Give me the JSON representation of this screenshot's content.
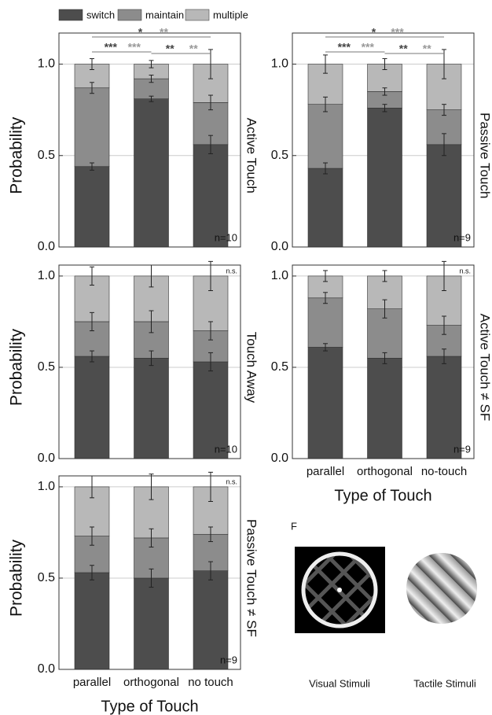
{
  "chart_data": [
    {
      "type": "bar",
      "stacked": true,
      "title": "Active Touch",
      "ylabel": "Probability",
      "ylim": [
        0,
        1.17
      ],
      "yticks": [
        {
          "value": 0,
          "label": "0.0"
        },
        {
          "value": 0.5,
          "label": "0.5"
        },
        {
          "value": 1,
          "label": "1.0"
        }
      ],
      "grid": true,
      "series": [
        {
          "name": "switch",
          "color": "#4d4d4d",
          "values": [
            0.44,
            0.81,
            0.56
          ],
          "errors": [
            0.02,
            0.015,
            0.05
          ]
        },
        {
          "name": "maintain",
          "color": "#8c8c8c",
          "values": [
            0.43,
            0.11,
            0.23
          ],
          "errors": [
            0.03,
            0.02,
            0.04
          ]
        },
        {
          "name": "multiple",
          "color": "#b8b8b8",
          "values": [
            0.13,
            0.08,
            0.21
          ],
          "errors": [
            0.03,
            0.02,
            0.08
          ]
        }
      ],
      "annotations": [
        "*",
        "**",
        "***",
        "***",
        "**",
        "**"
      ],
      "n_label": "n=10"
    },
    {
      "type": "bar",
      "stacked": true,
      "title": "Passive Touch",
      "ylim": [
        0,
        1.17
      ],
      "yticks": [
        {
          "value": 0,
          "label": "0.0"
        },
        {
          "value": 0.5,
          "label": "0.5"
        },
        {
          "value": 1,
          "label": "1.0"
        }
      ],
      "grid": true,
      "series": [
        {
          "color": "#4d4d4d",
          "values": [
            0.43,
            0.76,
            0.56
          ],
          "errors": [
            0.03,
            0.02,
            0.06
          ]
        },
        {
          "color": "#8c8c8c",
          "values": [
            0.35,
            0.09,
            0.19
          ],
          "errors": [
            0.04,
            0.02,
            0.03
          ]
        },
        {
          "color": "#b8b8b8",
          "values": [
            0.22,
            0.15,
            0.25
          ],
          "errors": [
            0.05,
            0.03,
            0.08
          ]
        }
      ],
      "annotations": [
        "*",
        "***",
        "***",
        "***",
        "**",
        "**"
      ],
      "n_label": "n=9"
    },
    {
      "type": "bar",
      "stacked": true,
      "title": "Touch Away",
      "ylabel": "Probability",
      "ylim": [
        0,
        1.06
      ],
      "yticks": [
        {
          "value": 0,
          "label": "0.0"
        },
        {
          "value": 0.5,
          "label": "0.5"
        },
        {
          "value": 1,
          "label": "1.0"
        }
      ],
      "grid": true,
      "series": [
        {
          "color": "#4d4d4d",
          "values": [
            0.56,
            0.55,
            0.53
          ],
          "errors": [
            0.03,
            0.04,
            0.05
          ]
        },
        {
          "color": "#8c8c8c",
          "values": [
            0.19,
            0.2,
            0.17
          ],
          "errors": [
            0.05,
            0.06,
            0.05
          ]
        },
        {
          "color": "#b8b8b8",
          "values": [
            0.25,
            0.25,
            0.3
          ],
          "errors": [
            0.05,
            0.06,
            0.08
          ]
        }
      ],
      "significance": "n.s.",
      "n_label": "n=10"
    },
    {
      "type": "bar",
      "stacked": true,
      "title": "Active Touch ≠ SF",
      "xlabel": "Type of Touch",
      "ylim": [
        0,
        1.06
      ],
      "categories": [
        "parallel",
        "orthogonal",
        "no-touch"
      ],
      "yticks": [
        {
          "value": 0,
          "label": "0.0"
        },
        {
          "value": 0.5,
          "label": "0.5"
        },
        {
          "value": 1,
          "label": "1.0"
        }
      ],
      "grid": true,
      "series": [
        {
          "color": "#4d4d4d",
          "values": [
            0.61,
            0.55,
            0.56
          ],
          "errors": [
            0.02,
            0.03,
            0.04
          ]
        },
        {
          "color": "#8c8c8c",
          "values": [
            0.27,
            0.27,
            0.17
          ],
          "errors": [
            0.03,
            0.05,
            0.05
          ]
        },
        {
          "color": "#b8b8b8",
          "values": [
            0.12,
            0.18,
            0.27
          ],
          "errors": [
            0.03,
            0.03,
            0.08
          ]
        }
      ],
      "significance": "n.s.",
      "n_label": "n=9"
    },
    {
      "type": "bar",
      "stacked": true,
      "title": "Passive Touch ≠ SF",
      "ylabel": "Probability",
      "xlabel": "Type of Touch",
      "ylim": [
        0,
        1.06
      ],
      "categories": [
        "parallel",
        "orthogonal",
        "no touch"
      ],
      "yticks": [
        {
          "value": 0,
          "label": "0.0"
        },
        {
          "value": 0.5,
          "label": "0.5"
        },
        {
          "value": 1,
          "label": "1.0"
        }
      ],
      "grid": true,
      "series": [
        {
          "color": "#4d4d4d",
          "values": [
            0.53,
            0.5,
            0.54
          ],
          "errors": [
            0.04,
            0.05,
            0.05
          ]
        },
        {
          "color": "#8c8c8c",
          "values": [
            0.2,
            0.22,
            0.2
          ],
          "errors": [
            0.05,
            0.05,
            0.04
          ]
        },
        {
          "color": "#b8b8b8",
          "values": [
            0.27,
            0.28,
            0.26
          ],
          "errors": [
            0.06,
            0.07,
            0.08
          ]
        }
      ],
      "significance": "n.s.",
      "n_label": "n=9"
    }
  ],
  "stimuli_panel": {
    "label": "F",
    "captions": [
      "Visual Stimuli",
      "Tactile Stimuli"
    ]
  }
}
